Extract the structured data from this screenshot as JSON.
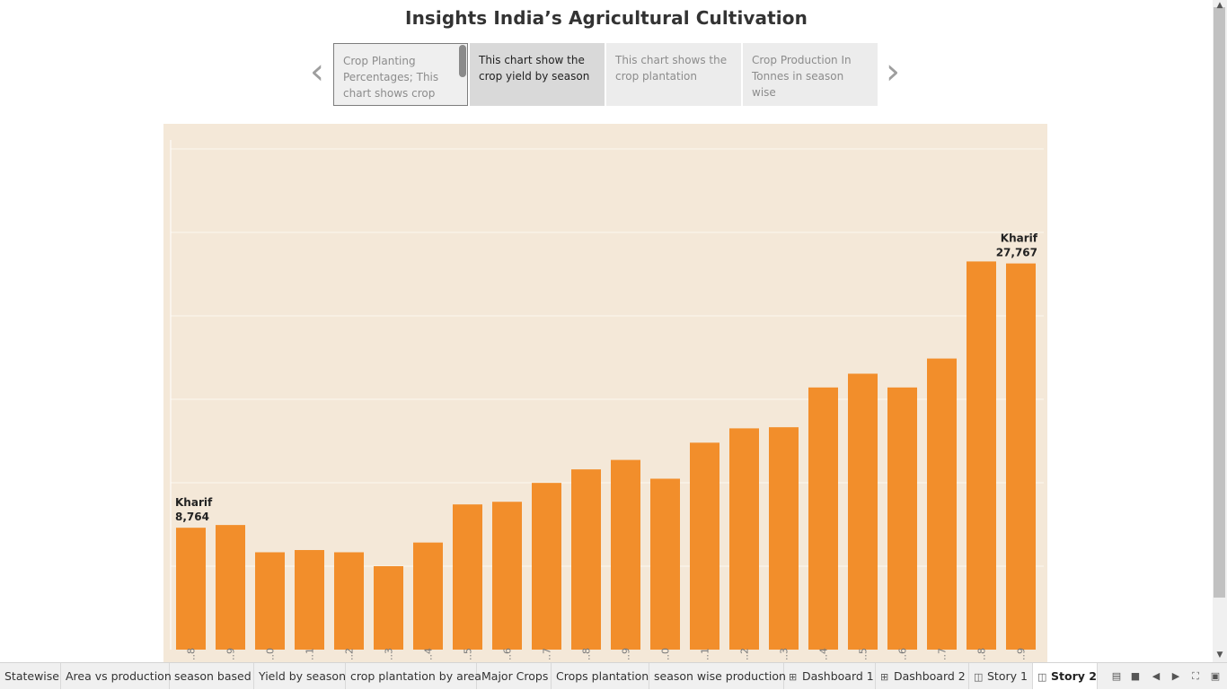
{
  "title": "Insights India’s Agricultural Cultivation",
  "navigator": {
    "prev_icon": "chevron-left-icon",
    "next_icon": "chevron-right-icon",
    "points": [
      "Crop Planting Percentages; This chart shows crop",
      "This chart show the crop yield by season",
      "This chart shows the crop plantation",
      "Crop Production In Tonnes in season wise"
    ]
  },
  "chart_data": {
    "type": "bar",
    "categories": [
      "..8",
      "..9",
      "..0",
      "..1",
      "..2",
      "..3",
      "..4",
      "..5",
      "..6",
      "..7",
      "..8",
      "..9",
      "..0",
      "..1",
      "..2",
      "..3",
      "..4",
      "..5",
      "..6",
      "..7",
      "..8",
      "..9"
    ],
    "values": [
      8764,
      8960,
      7000,
      7160,
      7000,
      6000,
      7700,
      10440,
      10630,
      11990,
      12960,
      13640,
      12290,
      14880,
      15910,
      15990,
      18850,
      19840,
      18850,
      20930,
      27910,
      27767
    ],
    "annotations": [
      {
        "index": 0,
        "label": "Kharif",
        "value": "8,764"
      },
      {
        "index": 21,
        "label": "Kharif",
        "value": "27,767"
      }
    ],
    "ylim": [
      0,
      36000
    ],
    "grid": true,
    "bar_color": "#f28e2b",
    "background": "#f4e8d8"
  },
  "tabs": [
    {
      "label": "Statewise",
      "icon": ""
    },
    {
      "label": "Area vs production",
      "icon": ""
    },
    {
      "label": "season based",
      "icon": ""
    },
    {
      "label": "Yield by season",
      "icon": ""
    },
    {
      "label": "crop plantation by area",
      "icon": ""
    },
    {
      "label": "Major Crops",
      "icon": ""
    },
    {
      "label": "Crops plantation",
      "icon": ""
    },
    {
      "label": "season wise production",
      "icon": ""
    },
    {
      "label": "Dashboard 1",
      "icon": "dashboard-icon"
    },
    {
      "label": "Dashboard 2",
      "icon": "dashboard-icon"
    },
    {
      "label": "Story 1",
      "icon": "story-icon"
    },
    {
      "label": "Story 2",
      "icon": "story-icon"
    }
  ],
  "toolbar_icons": [
    "tab-list-icon",
    "filmstrip-icon",
    "prev-sheet-icon",
    "next-sheet-icon",
    "fullscreen-icon",
    "present-icon"
  ]
}
